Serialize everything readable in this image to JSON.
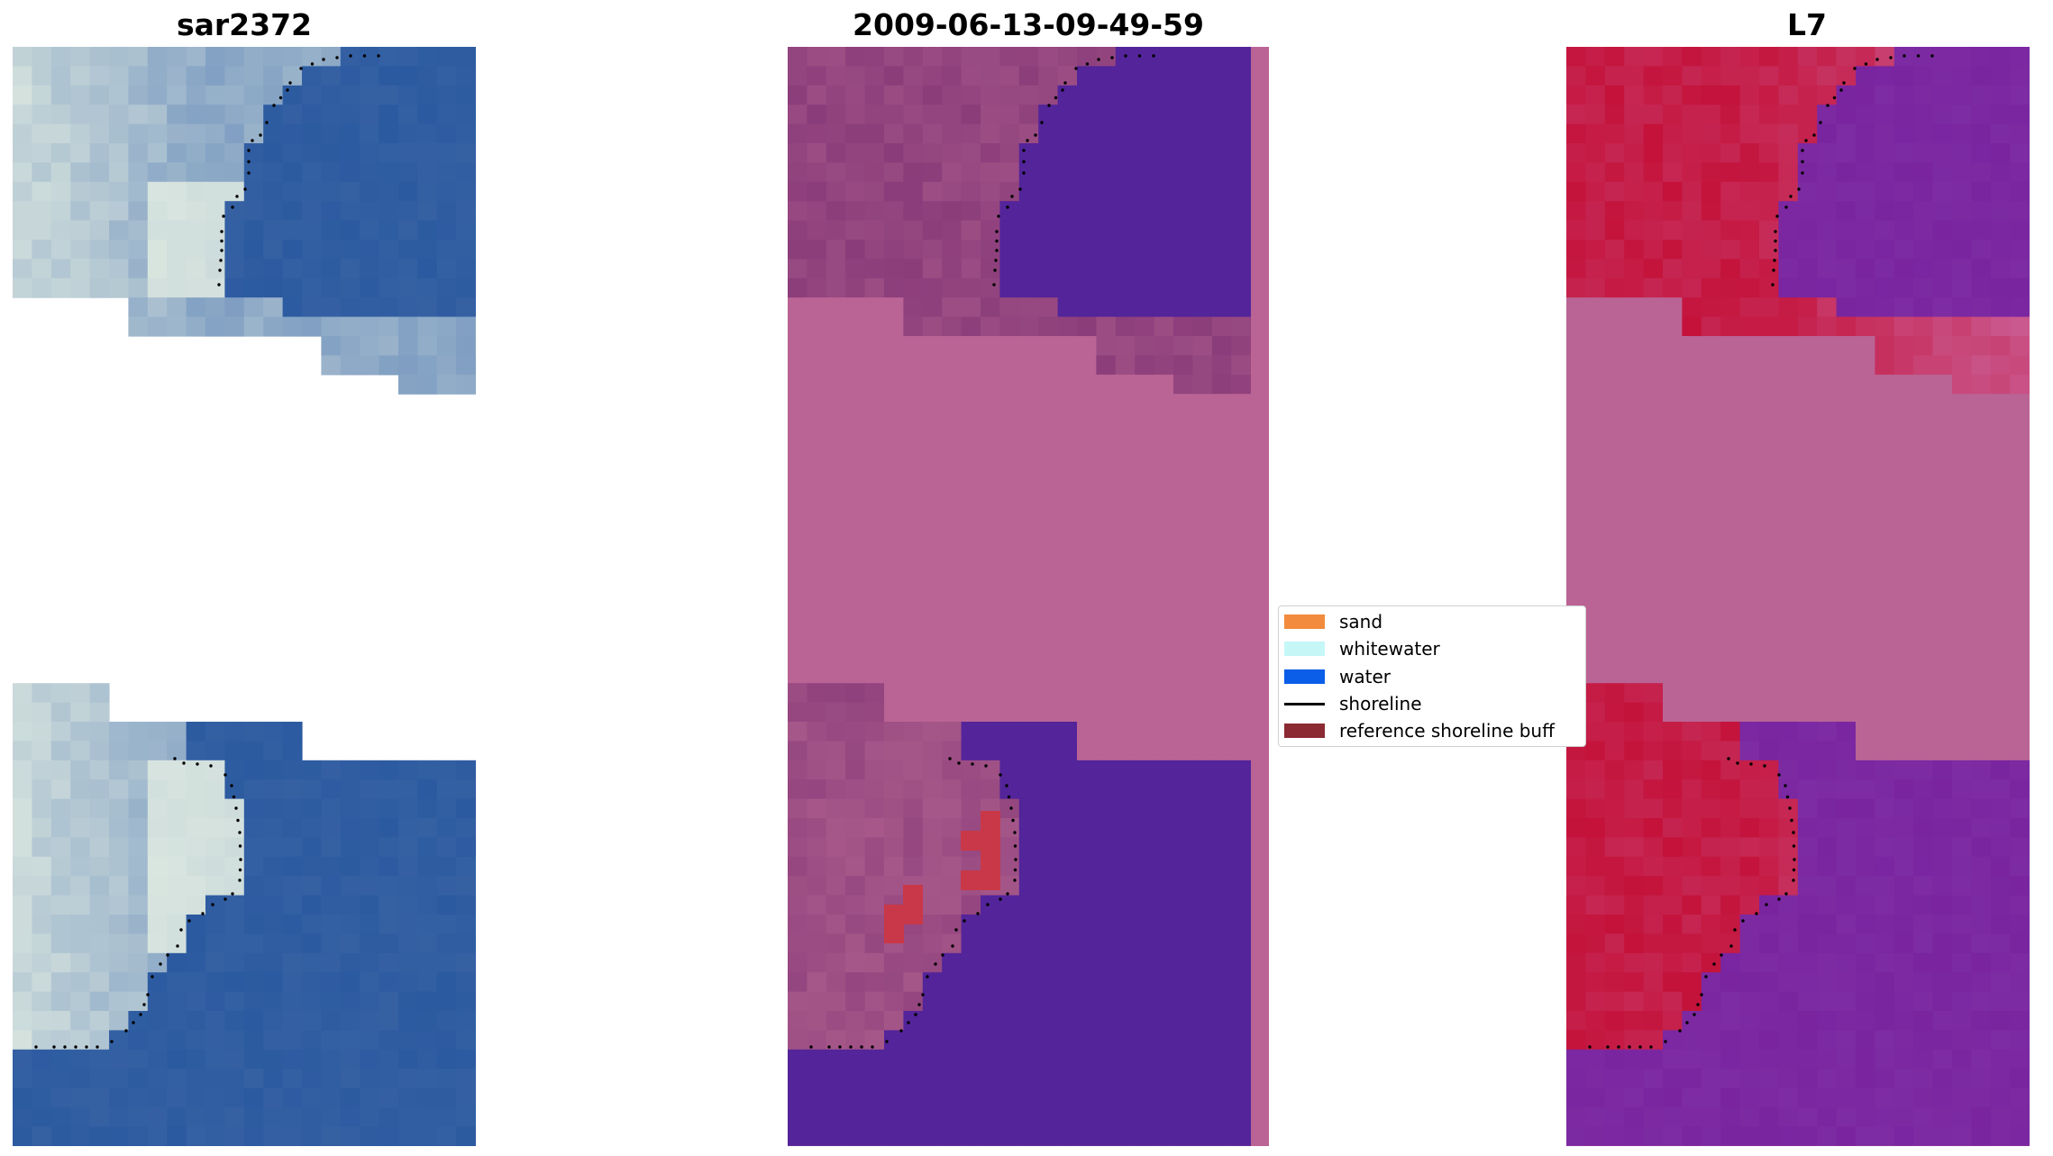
{
  "panels": [
    {
      "title": "sar2372",
      "kind": "rgb"
    },
    {
      "title": "2009-06-13-09-49-59",
      "kind": "classified"
    },
    {
      "title": "L7",
      "kind": "mndwi"
    }
  ],
  "legend": {
    "items": [
      {
        "label": "sand",
        "type": "patch",
        "color": "#f28b3d"
      },
      {
        "label": "whitewater",
        "type": "patch",
        "color": "#c6f7f7"
      },
      {
        "label": "water",
        "type": "patch",
        "color": "#0a5ee8"
      },
      {
        "label": "shoreline",
        "type": "line",
        "color": "#000000"
      },
      {
        "label": "reference shoreline buff",
        "type": "patch",
        "color": "#8b2a33"
      }
    ]
  },
  "colors": {
    "land_rgb": "#7f9ec2",
    "water_rgb": "#2c5aa0",
    "whitewater_rgb": "#eef6e6",
    "mask_pink": "#ba6495",
    "classified_water": "#53249a",
    "classified_land": "#8a3c7a",
    "buffer_red": "#c83848",
    "mndwi_land": "#c4123a",
    "mndwi_water": "#7a24a0",
    "shoreline": "#000000"
  }
}
